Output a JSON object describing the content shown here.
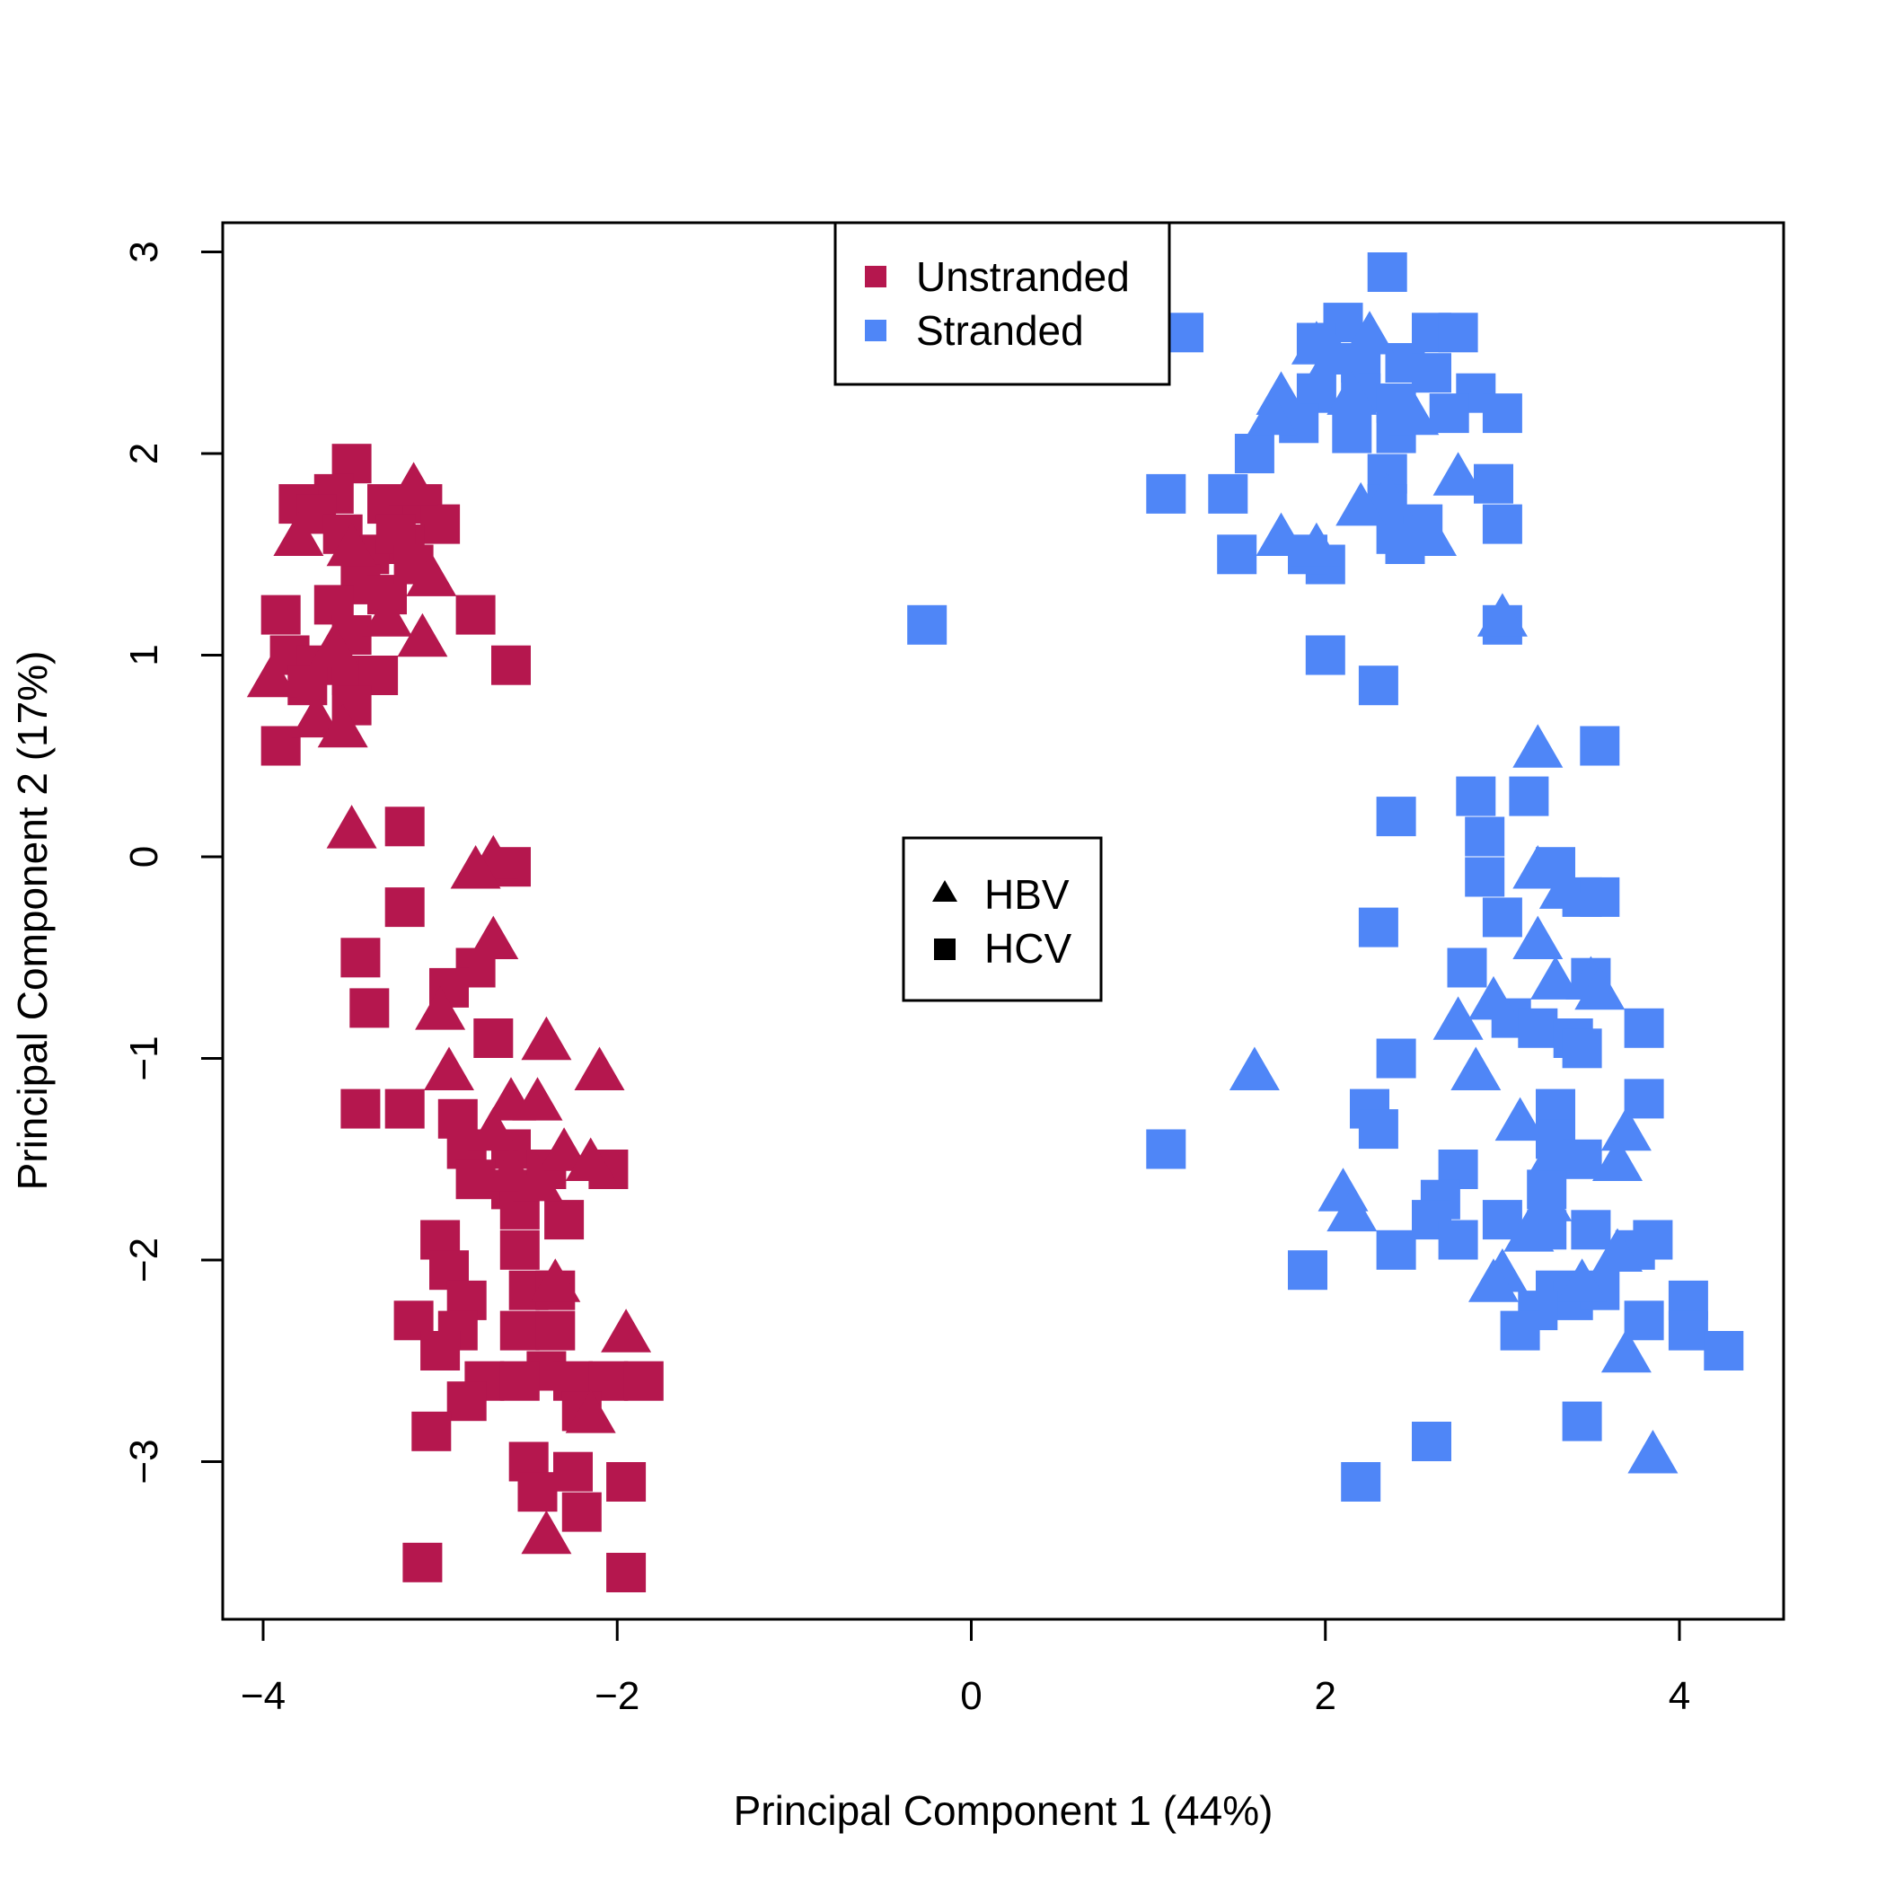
{
  "chart_data": {
    "type": "scatter",
    "title": "",
    "xlabel": "Principal Component 1 (44%)",
    "ylabel": "Principal Component 2 (17%)",
    "xlim": [
      -4.1,
      4.3
    ],
    "ylim": [
      -3.8,
      3.2
    ],
    "x_ticks": [
      -4,
      -2,
      0,
      2,
      4
    ],
    "y_ticks": [
      -3,
      -2,
      -1,
      0,
      1,
      2,
      3
    ],
    "x_tick_labels": [
      "−4",
      "−2",
      "0",
      "2",
      "4"
    ],
    "y_tick_labels": [
      "−3",
      "−2",
      "−1",
      "0",
      "1",
      "2",
      "3"
    ],
    "grid": false,
    "color_legend": {
      "placement": "top-center",
      "entries": [
        {
          "label": "Unstranded",
          "color": "#B5174E"
        },
        {
          "label": "Stranded",
          "color": "#4F86F7"
        }
      ]
    },
    "shape_legend": {
      "placement": "center",
      "entries": [
        {
          "label": "HBV",
          "shape": "triangle"
        },
        {
          "label": "HCV",
          "shape": "square"
        }
      ]
    },
    "series": [
      {
        "name": "Unstranded HCV",
        "group": "Unstranded",
        "marker": "square",
        "points": [
          [
            -3.5,
            1.95
          ],
          [
            -3.6,
            1.8
          ],
          [
            -3.8,
            1.75
          ],
          [
            -3.3,
            1.75
          ],
          [
            -3.1,
            1.75
          ],
          [
            -3.0,
            1.65
          ],
          [
            -3.2,
            1.55
          ],
          [
            -3.4,
            1.5
          ],
          [
            -3.7,
            1.7
          ],
          [
            -3.55,
            1.6
          ],
          [
            -3.45,
            1.35
          ],
          [
            -3.6,
            1.25
          ],
          [
            -3.3,
            1.3
          ],
          [
            -3.9,
            1.2
          ],
          [
            -3.85,
            1.0
          ],
          [
            -3.7,
            0.95
          ],
          [
            -3.5,
            0.9
          ],
          [
            -3.35,
            0.9
          ],
          [
            -3.75,
            0.85
          ],
          [
            -3.5,
            0.75
          ],
          [
            -3.9,
            0.55
          ],
          [
            -2.8,
            1.2
          ],
          [
            -2.6,
            0.95
          ],
          [
            -3.5,
            1.1
          ],
          [
            -3.25,
            1.6
          ],
          [
            -3.15,
            1.45
          ],
          [
            -3.2,
            0.15
          ],
          [
            -2.6,
            -0.05
          ],
          [
            -3.2,
            -0.25
          ],
          [
            -3.45,
            -0.5
          ],
          [
            -3.4,
            -0.75
          ],
          [
            -2.8,
            -0.55
          ],
          [
            -2.95,
            -0.65
          ],
          [
            -2.7,
            -0.9
          ],
          [
            -3.45,
            -1.25
          ],
          [
            -3.2,
            -1.25
          ],
          [
            -2.9,
            -1.3
          ],
          [
            -2.85,
            -1.45
          ],
          [
            -2.6,
            -1.45
          ],
          [
            -2.8,
            -1.6
          ],
          [
            -2.6,
            -1.65
          ],
          [
            -2.4,
            -1.55
          ],
          [
            -2.55,
            -1.75
          ],
          [
            -2.3,
            -1.8
          ],
          [
            -2.05,
            -1.55
          ],
          [
            -3.0,
            -1.9
          ],
          [
            -2.95,
            -2.05
          ],
          [
            -2.55,
            -1.95
          ],
          [
            -2.85,
            -2.2
          ],
          [
            -2.5,
            -2.15
          ],
          [
            -2.35,
            -2.15
          ],
          [
            -3.15,
            -2.3
          ],
          [
            -2.9,
            -2.35
          ],
          [
            -2.55,
            -2.35
          ],
          [
            -2.35,
            -2.35
          ],
          [
            -3.0,
            -2.45
          ],
          [
            -2.4,
            -2.55
          ],
          [
            -2.25,
            -2.6
          ],
          [
            -2.75,
            -2.6
          ],
          [
            -2.55,
            -2.6
          ],
          [
            -2.05,
            -2.6
          ],
          [
            -1.85,
            -2.6
          ],
          [
            -2.85,
            -2.7
          ],
          [
            -2.2,
            -2.75
          ],
          [
            -3.05,
            -2.85
          ],
          [
            -2.5,
            -3.0
          ],
          [
            -2.25,
            -3.05
          ],
          [
            -1.95,
            -3.1
          ],
          [
            -2.45,
            -3.15
          ],
          [
            -2.2,
            -3.25
          ],
          [
            -3.1,
            -3.5
          ],
          [
            -1.95,
            -3.55
          ]
        ]
      },
      {
        "name": "Unstranded HBV",
        "group": "Unstranded",
        "marker": "triangle",
        "points": [
          [
            -3.15,
            1.85
          ],
          [
            -3.8,
            1.6
          ],
          [
            -3.5,
            1.55
          ],
          [
            -3.05,
            1.4
          ],
          [
            -3.3,
            1.2
          ],
          [
            -3.1,
            1.1
          ],
          [
            -3.6,
            1.05
          ],
          [
            -3.95,
            0.9
          ],
          [
            -3.7,
            0.7
          ],
          [
            -3.55,
            0.65
          ],
          [
            -3.5,
            0.15
          ],
          [
            -2.7,
            0.0
          ],
          [
            -2.8,
            -0.05
          ],
          [
            -2.7,
            -0.4
          ],
          [
            -3.0,
            -0.75
          ],
          [
            -2.4,
            -0.9
          ],
          [
            -2.95,
            -1.05
          ],
          [
            -2.1,
            -1.05
          ],
          [
            -2.6,
            -1.2
          ],
          [
            -2.45,
            -1.2
          ],
          [
            -2.7,
            -1.35
          ],
          [
            -2.3,
            -1.45
          ],
          [
            -2.15,
            -1.5
          ],
          [
            -2.6,
            -1.55
          ],
          [
            -2.45,
            -1.6
          ],
          [
            -2.35,
            -2.1
          ],
          [
            -1.95,
            -2.35
          ],
          [
            -2.15,
            -2.75
          ],
          [
            -2.4,
            -3.35
          ]
        ]
      },
      {
        "name": "Stranded HCV",
        "group": "Stranded",
        "marker": "square",
        "points": [
          [
            2.35,
            2.9
          ],
          [
            1.2,
            2.6
          ],
          [
            2.1,
            2.65
          ],
          [
            2.6,
            2.6
          ],
          [
            2.75,
            2.6
          ],
          [
            1.95,
            2.55
          ],
          [
            2.2,
            2.45
          ],
          [
            2.45,
            2.45
          ],
          [
            2.6,
            2.4
          ],
          [
            2.85,
            2.3
          ],
          [
            3.0,
            2.2
          ],
          [
            1.95,
            2.3
          ],
          [
            2.2,
            2.3
          ],
          [
            2.4,
            2.25
          ],
          [
            2.7,
            2.2
          ],
          [
            1.85,
            2.15
          ],
          [
            2.15,
            2.1
          ],
          [
            2.4,
            2.1
          ],
          [
            1.6,
            2.0
          ],
          [
            2.35,
            1.9
          ],
          [
            2.95,
            1.85
          ],
          [
            1.1,
            1.8
          ],
          [
            1.45,
            1.8
          ],
          [
            2.35,
            1.75
          ],
          [
            2.4,
            1.6
          ],
          [
            2.55,
            1.65
          ],
          [
            3.0,
            1.65
          ],
          [
            2.45,
            1.55
          ],
          [
            1.5,
            1.5
          ],
          [
            2.0,
            1.45
          ],
          [
            1.9,
            1.5
          ],
          [
            3.0,
            1.15
          ],
          [
            2.0,
            1.0
          ],
          [
            2.3,
            0.85
          ],
          [
            -0.25,
            1.15
          ],
          [
            3.55,
            0.55
          ],
          [
            2.4,
            0.2
          ],
          [
            2.85,
            0.3
          ],
          [
            3.15,
            0.3
          ],
          [
            2.9,
            0.1
          ],
          [
            3.3,
            -0.05
          ],
          [
            3.45,
            -0.2
          ],
          [
            3.55,
            -0.2
          ],
          [
            2.9,
            -0.1
          ],
          [
            3.0,
            -0.3
          ],
          [
            2.3,
            -0.35
          ],
          [
            2.8,
            -0.55
          ],
          [
            3.5,
            -0.6
          ],
          [
            3.05,
            -0.8
          ],
          [
            3.2,
            -0.85
          ],
          [
            3.4,
            -0.9
          ],
          [
            3.8,
            -0.85
          ],
          [
            3.45,
            -0.95
          ],
          [
            2.4,
            -1.0
          ],
          [
            3.3,
            -1.25
          ],
          [
            3.8,
            -1.2
          ],
          [
            2.25,
            -1.25
          ],
          [
            2.3,
            -1.35
          ],
          [
            3.3,
            -1.4
          ],
          [
            3.45,
            -1.5
          ],
          [
            2.75,
            -1.55
          ],
          [
            2.65,
            -1.7
          ],
          [
            3.25,
            -1.65
          ],
          [
            2.6,
            -1.8
          ],
          [
            3.0,
            -1.8
          ],
          [
            3.25,
            -1.85
          ],
          [
            3.5,
            -1.85
          ],
          [
            2.75,
            -1.9
          ],
          [
            3.75,
            -1.95
          ],
          [
            3.85,
            -1.9
          ],
          [
            1.9,
            -2.05
          ],
          [
            2.4,
            -1.95
          ],
          [
            3.3,
            -2.15
          ],
          [
            3.4,
            -2.2
          ],
          [
            3.2,
            -2.25
          ],
          [
            3.55,
            -2.15
          ],
          [
            4.05,
            -2.2
          ],
          [
            3.8,
            -2.3
          ],
          [
            3.1,
            -2.35
          ],
          [
            4.05,
            -2.35
          ],
          [
            4.25,
            -2.45
          ],
          [
            2.6,
            -2.9
          ],
          [
            3.45,
            -2.8
          ],
          [
            2.2,
            -3.1
          ],
          [
            1.1,
            -1.45
          ]
        ]
      },
      {
        "name": "Stranded HBV",
        "group": "Stranded",
        "marker": "triangle",
        "points": [
          [
            2.25,
            2.6
          ],
          [
            1.95,
            2.55
          ],
          [
            2.05,
            2.5
          ],
          [
            1.75,
            2.3
          ],
          [
            2.15,
            2.3
          ],
          [
            1.7,
            2.2
          ],
          [
            2.5,
            2.2
          ],
          [
            2.75,
            1.9
          ],
          [
            2.35,
            1.8
          ],
          [
            2.2,
            1.75
          ],
          [
            1.75,
            1.6
          ],
          [
            1.95,
            1.55
          ],
          [
            2.6,
            1.6
          ],
          [
            3.0,
            1.2
          ],
          [
            3.2,
            0.55
          ],
          [
            3.2,
            -0.05
          ],
          [
            3.35,
            -0.15
          ],
          [
            3.2,
            -0.4
          ],
          [
            3.3,
            -0.6
          ],
          [
            2.95,
            -0.7
          ],
          [
            3.5,
            -0.6
          ],
          [
            3.55,
            -0.65
          ],
          [
            2.75,
            -0.8
          ],
          [
            2.85,
            -1.05
          ],
          [
            1.6,
            -1.05
          ],
          [
            3.1,
            -1.3
          ],
          [
            3.7,
            -1.35
          ],
          [
            3.3,
            -1.45
          ],
          [
            3.65,
            -1.5
          ],
          [
            2.1,
            -1.65
          ],
          [
            2.15,
            -1.75
          ],
          [
            3.25,
            -1.7
          ],
          [
            3.15,
            -1.85
          ],
          [
            3.65,
            -1.95
          ],
          [
            3.0,
            -2.05
          ],
          [
            2.95,
            -2.1
          ],
          [
            3.45,
            -2.1
          ],
          [
            3.7,
            -2.45
          ],
          [
            3.85,
            -2.95
          ]
        ]
      }
    ]
  }
}
